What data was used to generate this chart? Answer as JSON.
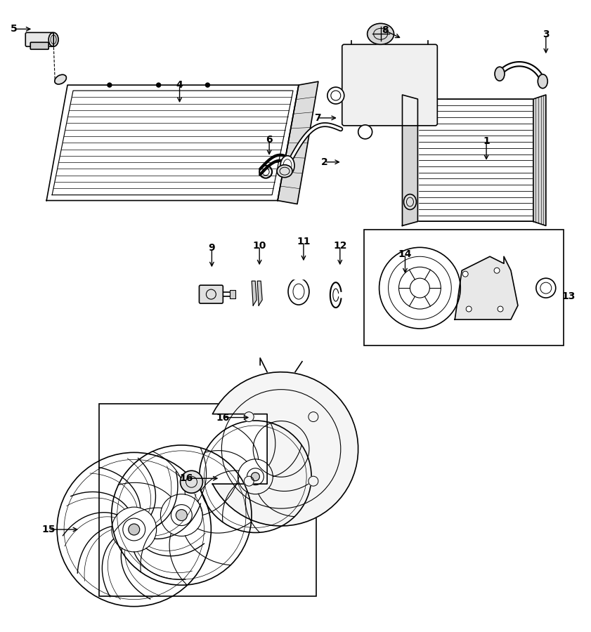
{
  "bg_color": "#ffffff",
  "lc": "#000000",
  "fig_w": 8.41,
  "fig_h": 9.0,
  "dpi": 100
}
